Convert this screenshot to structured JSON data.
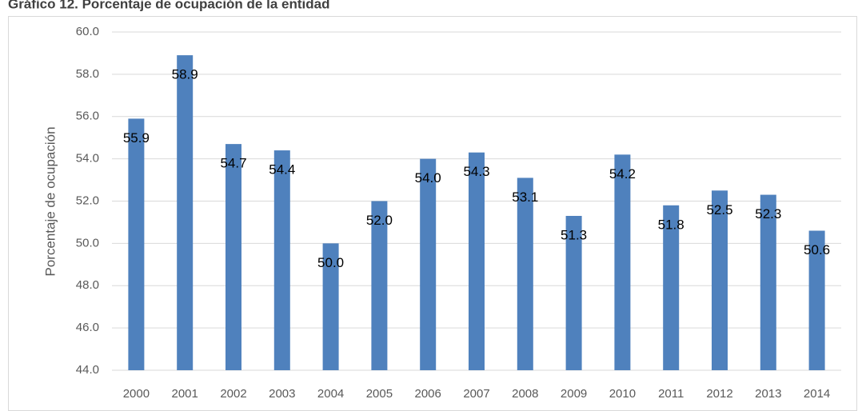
{
  "chart_data": {
    "type": "bar",
    "title": "Gráfico 12. Porcentaje de ocupación de la entidad",
    "y_label": "Porcentaje de ocupación",
    "categories": [
      "2000",
      "2001",
      "2002",
      "2003",
      "2004",
      "2005",
      "2006",
      "2007",
      "2008",
      "2009",
      "2010",
      "2011",
      "2012",
      "2013",
      "2014"
    ],
    "values": [
      55.9,
      58.9,
      54.7,
      54.4,
      50.0,
      52.0,
      54.0,
      54.3,
      53.1,
      51.3,
      54.2,
      51.8,
      52.5,
      52.3,
      50.6
    ],
    "value_labels": [
      "55.9",
      "58.9",
      "54.7",
      "54.4",
      "50.0",
      "52.0",
      "54.0",
      "54.3",
      "53.1",
      "51.3",
      "54.2",
      "51.8",
      "52.5",
      "52.3",
      "50.6"
    ],
    "color": "#4f81bd",
    "ylim": [
      44,
      60
    ],
    "yticks": [
      {
        "value": 44,
        "label": "44.0"
      },
      {
        "value": 46,
        "label": "46.0"
      },
      {
        "value": 48,
        "label": "48.0"
      },
      {
        "value": 50,
        "label": "50.0"
      },
      {
        "value": 52,
        "label": "52.0"
      },
      {
        "value": 54,
        "label": "54.0"
      },
      {
        "value": 56,
        "label": "56.0"
      },
      {
        "value": 58,
        "label": "58.0"
      },
      {
        "value": 60,
        "label": "60.0"
      }
    ],
    "grid": true
  }
}
